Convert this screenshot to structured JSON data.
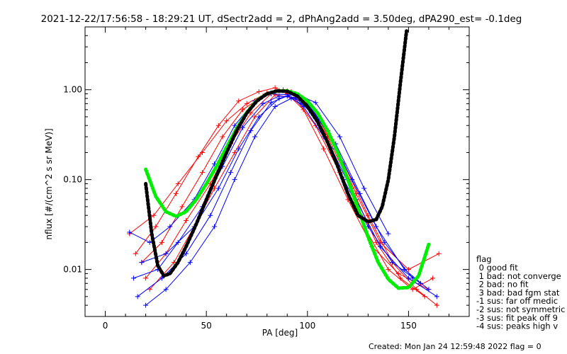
{
  "chart_data": {
    "type": "line",
    "title": "2021-12-22/17:56:58 - 18:29:21 UT, dSectr2add = 2, dPhAng2add = 3.50deg, dPA290_est=  -0.1deg",
    "xlabel": "PA [deg]",
    "ylabel": "nflux [#/(cm^2 s sr MeV)]",
    "xlim": [
      -10,
      180
    ],
    "ylim": [
      0.003,
      5
    ],
    "yscale": "log",
    "x_ticks": [
      0,
      50,
      100,
      150
    ],
    "y_ticks": [
      0.01,
      0.1,
      1.0
    ],
    "y_tick_labels": [
      "0.01",
      "0.10",
      "1.00"
    ],
    "legend": {
      "title": "flag",
      "placement": "right",
      "entries": [
        " 0 good fit",
        " 1 bad: not converge",
        " 2 bad: no fit",
        " 3 bad: bad fgm stat",
        "-1 sus: far off medic",
        "-2 sus: not symmetric",
        "-3 sus: fit peak off 9",
        "-4 sus: peaks high v"
      ]
    },
    "footer": "Created: Mon Jan 24 12:59:48 2022   flag = 0",
    "colors": {
      "red": "#ff0000",
      "blue": "#0000ff",
      "fit_green": "#00ee00",
      "fit_black": "#000000"
    },
    "series": [
      {
        "name": "",
        "color": "#ff0000",
        "x": [
          18,
          28,
          38,
          48,
          58,
          68,
          78,
          86,
          92,
          100,
          110,
          122,
          134,
          146,
          158
        ],
        "y": [
          0.012,
          0.02,
          0.05,
          0.12,
          0.3,
          0.6,
          0.85,
          0.98,
          0.95,
          0.7,
          0.3,
          0.08,
          0.02,
          0.008,
          0.005
        ]
      },
      {
        "name": "",
        "color": "#ff0000",
        "x": [
          20,
          30,
          40,
          52,
          62,
          72,
          82,
          88,
          96,
          106,
          118,
          130,
          142,
          154,
          164
        ],
        "y": [
          0.008,
          0.015,
          0.035,
          0.09,
          0.25,
          0.55,
          0.9,
          1.0,
          0.85,
          0.45,
          0.15,
          0.04,
          0.012,
          0.006,
          0.004
        ]
      },
      {
        "name": "",
        "color": "#ff0000",
        "x": [
          15,
          25,
          35,
          46,
          56,
          66,
          76,
          84,
          90,
          98,
          108,
          120,
          132,
          145,
          160
        ],
        "y": [
          0.015,
          0.03,
          0.07,
          0.18,
          0.4,
          0.75,
          0.95,
          1.05,
          0.9,
          0.6,
          0.22,
          0.06,
          0.018,
          0.009,
          0.006
        ]
      },
      {
        "name": "",
        "color": "#ff0000",
        "x": [
          22,
          34,
          44,
          54,
          64,
          74,
          84,
          94,
          104,
          116,
          128,
          140,
          152,
          162
        ],
        "y": [
          0.006,
          0.012,
          0.03,
          0.08,
          0.2,
          0.5,
          0.88,
          0.8,
          0.4,
          0.12,
          0.03,
          0.01,
          0.006,
          0.008
        ]
      },
      {
        "name": "",
        "color": "#ff0000",
        "x": [
          12,
          24,
          36,
          48,
          60,
          70,
          80,
          90,
          100,
          112,
          124,
          136,
          150,
          165
        ],
        "y": [
          0.025,
          0.04,
          0.09,
          0.2,
          0.45,
          0.7,
          0.92,
          0.97,
          0.75,
          0.28,
          0.07,
          0.02,
          0.01,
          0.015
        ]
      },
      {
        "name": "",
        "color": "#0000ff",
        "x": [
          12,
          22,
          32,
          44,
          54,
          64,
          74,
          82,
          90,
          98,
          108,
          118,
          130,
          142,
          156
        ],
        "y": [
          0.026,
          0.02,
          0.03,
          0.06,
          0.15,
          0.4,
          0.75,
          0.9,
          0.88,
          0.65,
          0.3,
          0.1,
          0.03,
          0.012,
          0.007
        ]
      },
      {
        "name": "",
        "color": "#0000ff",
        "x": [
          14,
          26,
          36,
          48,
          58,
          68,
          78,
          86,
          94,
          102,
          112,
          124,
          136,
          150,
          164
        ],
        "y": [
          0.008,
          0.01,
          0.02,
          0.05,
          0.14,
          0.38,
          0.7,
          0.85,
          0.82,
          0.55,
          0.22,
          0.06,
          0.018,
          0.008,
          0.005
        ]
      },
      {
        "name": "",
        "color": "#0000ff",
        "x": [
          16,
          28,
          40,
          52,
          62,
          72,
          82,
          90,
          100,
          110,
          122,
          134,
          148,
          160
        ],
        "y": [
          0.005,
          0.008,
          0.015,
          0.04,
          0.12,
          0.35,
          0.72,
          0.85,
          0.7,
          0.35,
          0.1,
          0.03,
          0.01,
          0.006
        ]
      },
      {
        "name": "",
        "color": "#0000ff",
        "x": [
          20,
          30,
          42,
          54,
          64,
          74,
          84,
          92,
          102,
          114,
          126,
          138,
          152
        ],
        "y": [
          0.004,
          0.006,
          0.012,
          0.03,
          0.1,
          0.3,
          0.65,
          0.8,
          0.6,
          0.25,
          0.07,
          0.02,
          0.008
        ]
      },
      {
        "name": "",
        "color": "#0000ff",
        "x": [
          18,
          30,
          44,
          56,
          66,
          76,
          86,
          94,
          104,
          116,
          128,
          140
        ],
        "y": [
          0.012,
          0.015,
          0.03,
          0.08,
          0.22,
          0.5,
          0.8,
          0.9,
          0.72,
          0.3,
          0.08,
          0.025
        ]
      }
    ],
    "fits": [
      {
        "name": "",
        "color": "#00ee00",
        "x": [
          20,
          25,
          30,
          35,
          40,
          45,
          50,
          55,
          60,
          65,
          70,
          75,
          80,
          85,
          90,
          95,
          100,
          105,
          110,
          115,
          120,
          125,
          130,
          135,
          140,
          145,
          150,
          155,
          160
        ],
        "y": [
          0.13,
          0.065,
          0.044,
          0.039,
          0.044,
          0.06,
          0.09,
          0.14,
          0.23,
          0.37,
          0.56,
          0.76,
          0.9,
          0.97,
          0.97,
          0.9,
          0.75,
          0.55,
          0.35,
          0.2,
          0.1,
          0.048,
          0.023,
          0.012,
          0.0078,
          0.0062,
          0.0063,
          0.0085,
          0.019
        ]
      },
      {
        "name": "",
        "color": "#000000",
        "x": [
          20,
          23,
          26,
          29,
          32,
          36,
          40,
          45,
          50,
          55,
          60,
          65,
          70,
          75,
          80,
          85,
          90,
          95,
          100,
          105,
          110,
          115,
          120,
          125,
          130,
          134,
          137,
          140,
          143,
          146,
          149
        ],
        "y": [
          0.09,
          0.025,
          0.011,
          0.0085,
          0.009,
          0.012,
          0.018,
          0.032,
          0.06,
          0.11,
          0.2,
          0.35,
          0.55,
          0.75,
          0.9,
          0.97,
          0.96,
          0.85,
          0.65,
          0.44,
          0.26,
          0.14,
          0.07,
          0.04,
          0.034,
          0.036,
          0.05,
          0.1,
          0.3,
          1.2,
          4.5
        ]
      }
    ]
  }
}
